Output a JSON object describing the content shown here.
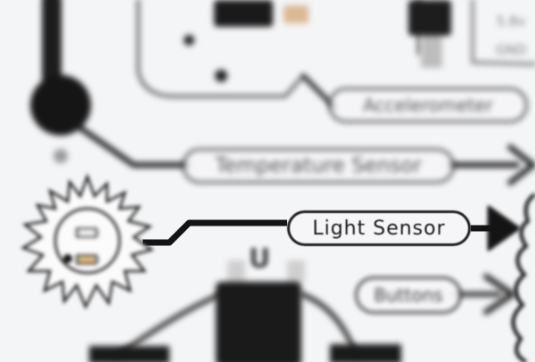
{
  "labels": {
    "light_sensor": "Light Sensor",
    "temperature_sensor": "Temperature Sensor",
    "accelerometer": "Accelerometer",
    "buttons": "Buttons",
    "u_mark": "U",
    "side_text_1": "5.8v",
    "side_text_2": "GND"
  },
  "colors": {
    "board": "#f4f5f7",
    "ink": "#1a1a1a",
    "led_amber": "#c9a46a",
    "component": "#2a2a2a"
  },
  "icons": [
    "sun-icon",
    "arrow-right-icon",
    "light-sensor-chip-icon"
  ]
}
